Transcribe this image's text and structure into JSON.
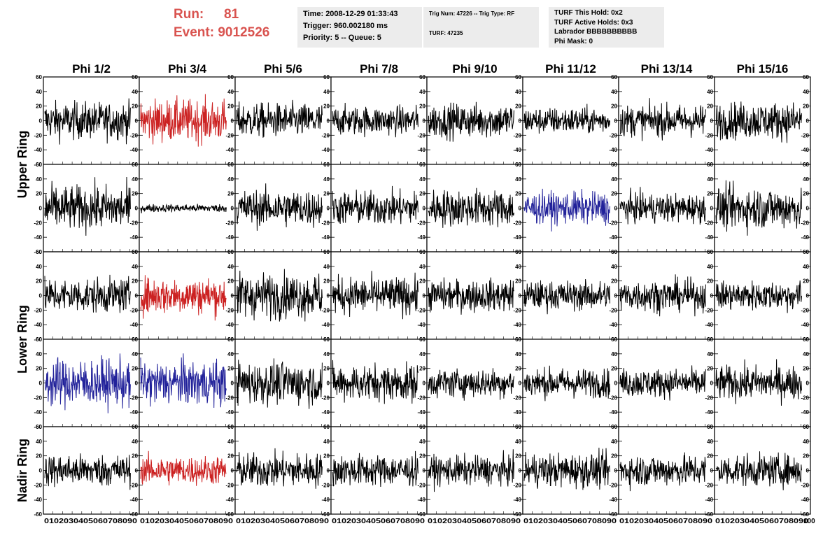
{
  "header": {
    "run_label": "Run:",
    "run_value": "81",
    "event_label": "Event:",
    "event_value": "9012526",
    "time": "Time: 2008-12-29 01:33:43",
    "trigger": "Trigger: 960.002180 ms",
    "priority": "Priority: 5 -- Queue: 5",
    "trig_num": "Trig Num: 47226 -- Trig Type: RF",
    "turf": "TURF: 47235",
    "turf_this_hold": "TURF This Hold: 0x2",
    "turf_active_holds": "TURF Active Holds: 0x3",
    "labrador": "Labrador BBBBBBBBBB",
    "phi_mask": "Phi Mask: 0"
  },
  "chart_data": {
    "type": "line",
    "columns": [
      "Phi 1/2",
      "Phi 3/4",
      "Phi 5/6",
      "Phi 7/8",
      "Phi 9/10",
      "Phi 11/12",
      "Phi 13/14",
      "Phi 15/16"
    ],
    "ring_labels": [
      "Upper Ring",
      "Lower Ring",
      "Nadir Ring"
    ],
    "ylim": [
      -60,
      60
    ],
    "yticks": [
      -60,
      -40,
      -20,
      0,
      20,
      40,
      60
    ],
    "xlim": [
      0,
      100
    ],
    "xticks": [
      0,
      10,
      20,
      30,
      40,
      50,
      60,
      70,
      80,
      90,
      100
    ],
    "x_tick_labels": "0102030405060708090",
    "colors": {
      "normal": "#000000",
      "red": "#cc2222",
      "blue": "#22229a"
    },
    "rows": [
      [
        {
          "color": "normal",
          "amp": 14
        },
        {
          "color": "red",
          "amp": 16
        },
        {
          "color": "normal",
          "amp": 13
        },
        {
          "color": "normal",
          "amp": 11
        },
        {
          "color": "normal",
          "amp": 13
        },
        {
          "color": "normal",
          "amp": 10
        },
        {
          "color": "normal",
          "amp": 12
        },
        {
          "color": "normal",
          "amp": 14
        }
      ],
      [
        {
          "color": "normal",
          "amp": 17
        },
        {
          "color": "normal",
          "amp": 3
        },
        {
          "color": "normal",
          "amp": 14
        },
        {
          "color": "normal",
          "amp": 13
        },
        {
          "color": "normal",
          "amp": 14
        },
        {
          "color": "blue",
          "amp": 12
        },
        {
          "color": "normal",
          "amp": 11
        },
        {
          "color": "normal",
          "amp": 16
        }
      ],
      [
        {
          "color": "normal",
          "amp": 13
        },
        {
          "color": "red",
          "amp": 14
        },
        {
          "color": "normal",
          "amp": 17
        },
        {
          "color": "normal",
          "amp": 14
        },
        {
          "color": "normal",
          "amp": 12
        },
        {
          "color": "normal",
          "amp": 11
        },
        {
          "color": "normal",
          "amp": 12
        },
        {
          "color": "normal",
          "amp": 11
        }
      ],
      [
        {
          "color": "blue",
          "amp": 18
        },
        {
          "color": "blue",
          "amp": 17
        },
        {
          "color": "normal",
          "amp": 16
        },
        {
          "color": "normal",
          "amp": 14
        },
        {
          "color": "normal",
          "amp": 11
        },
        {
          "color": "normal",
          "amp": 11
        },
        {
          "color": "normal",
          "amp": 11
        },
        {
          "color": "normal",
          "amp": 13
        }
      ],
      [
        {
          "color": "normal",
          "amp": 12
        },
        {
          "color": "red",
          "amp": 11
        },
        {
          "color": "normal",
          "amp": 13
        },
        {
          "color": "normal",
          "amp": 12
        },
        {
          "color": "normal",
          "amp": 11
        },
        {
          "color": "normal",
          "amp": 13
        },
        {
          "color": "normal",
          "amp": 12
        },
        {
          "color": "normal",
          "amp": 12
        }
      ]
    ]
  }
}
